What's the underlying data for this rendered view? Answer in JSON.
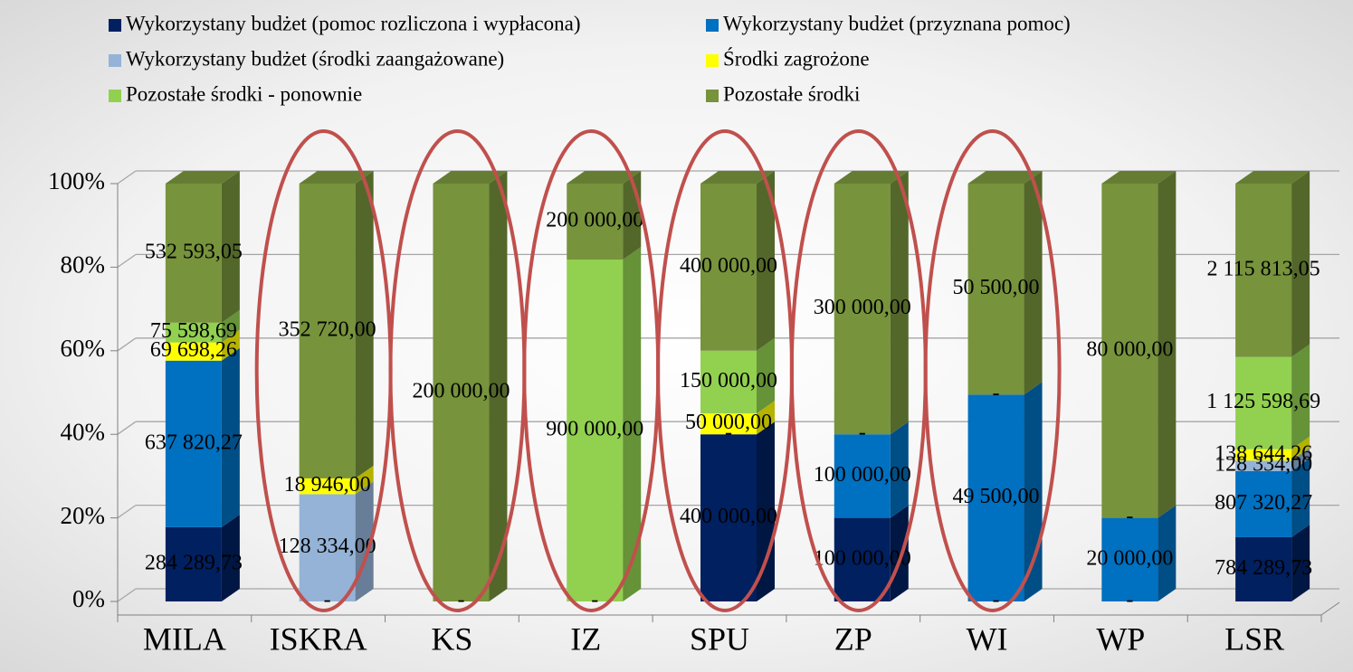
{
  "chart_data": {
    "type": "bar",
    "stacked": "percent",
    "categories": [
      "MILA",
      "ISKRA",
      "KS",
      "IZ",
      "SPU",
      "ZP",
      "WI",
      "WP",
      "LSR"
    ],
    "series": [
      {
        "name": "Wykorzystany budżet (pomoc rozliczona i wypłacona)",
        "color": "#002060",
        "values": [
          284289.73,
          0,
          0,
          0,
          400000,
          100000,
          0,
          0,
          784289.73
        ],
        "value_labels": [
          "284 289,73",
          "-",
          "-",
          "-",
          "400 000,00",
          "100 000,00",
          "-",
          "-",
          "784 289,73"
        ]
      },
      {
        "name": "Wykorzystany budżet (przyznana pomoc)",
        "color": "#0070c0",
        "values": [
          637820.27,
          0,
          0,
          0,
          0,
          100000,
          49500,
          20000,
          807320.27
        ],
        "value_labels": [
          "637 820,27",
          null,
          null,
          null,
          "-",
          "100 000,00",
          "49 500,00",
          "20 000,00",
          "807 320,27"
        ]
      },
      {
        "name": "Wykorzystany budżet (środki zaangażowane)",
        "color": "#95b3d7",
        "values": [
          0,
          128334,
          0,
          0,
          0,
          0,
          0,
          0,
          128334
        ],
        "value_labels": [
          null,
          "128 334,00",
          null,
          null,
          null,
          "-",
          "-",
          "-",
          "128 334,00"
        ]
      },
      {
        "name": "Środki zagrożone",
        "color": "#ffff00",
        "values": [
          69698.26,
          18946,
          0,
          0,
          50000,
          0,
          0,
          0,
          138644.26
        ],
        "value_labels": [
          "69 698,26",
          "18 946,00",
          null,
          null,
          "50 000,00",
          null,
          null,
          null,
          "138 644,26"
        ]
      },
      {
        "name": "Pozostałe środki - ponownie",
        "color": "#92d050",
        "values": [
          75598.69,
          0,
          0,
          900000,
          150000,
          0,
          0,
          0,
          1125598.69
        ],
        "value_labels": [
          "75 598,69",
          null,
          null,
          "900 000,00",
          "150 000,00",
          null,
          null,
          null,
          "1 125 598,69"
        ]
      },
      {
        "name": "Pozostałe środki",
        "color": "#77933c",
        "values": [
          532593.05,
          352720,
          200000,
          200000,
          400000,
          300000,
          50500,
          80000,
          2115813.05
        ],
        "value_labels": [
          "532 593,05",
          "352 720,00",
          "200 000,00",
          "200 000,00",
          "400 000,00",
          "300 000,00",
          "50 500,00",
          "80 000,00",
          "2 115 813,05"
        ]
      }
    ],
    "ylim": [
      0,
      100
    ],
    "yticks": [
      {
        "value": 0,
        "label": "0%"
      },
      {
        "value": 20,
        "label": "20%"
      },
      {
        "value": 40,
        "label": "40%"
      },
      {
        "value": 60,
        "label": "60%"
      },
      {
        "value": 80,
        "label": "80%"
      },
      {
        "value": 100,
        "label": "100%"
      }
    ],
    "grid": true,
    "legend": "top"
  }
}
